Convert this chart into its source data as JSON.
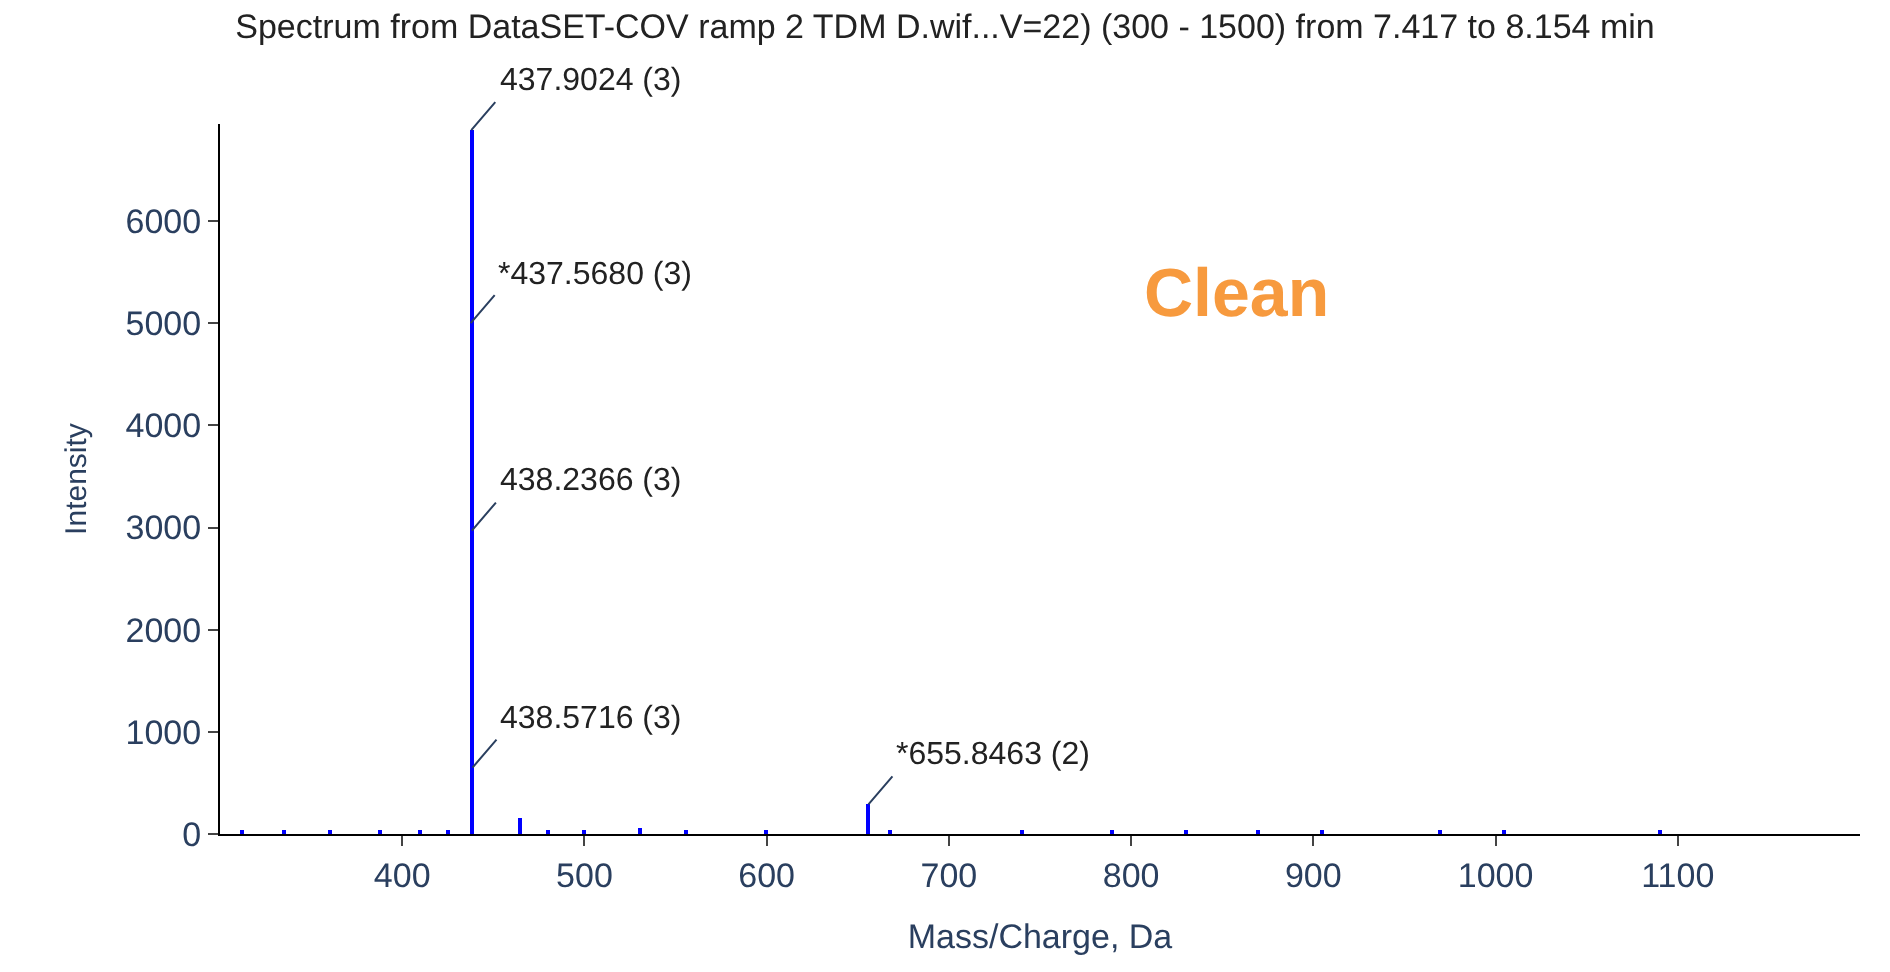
{
  "chart_data": {
    "type": "bar",
    "title": "Spectrum from DataSET-COV ramp 2 TDM D.wif...V=22) (300 - 1500) from 7.417 to 8.154 min",
    "xlabel": "Mass/Charge, Da",
    "ylabel": "Intensity",
    "x": [
      312,
      335,
      360,
      388,
      410,
      425,
      437.9024,
      465,
      480,
      500,
      530,
      556,
      600,
      655.8463,
      668,
      740,
      790,
      830,
      870,
      905,
      970,
      1005,
      1090
    ],
    "series": [
      {
        "color": "#0000ff",
        "values": [
          30,
          30,
          30,
          40,
          40,
          40,
          6890,
          150,
          40,
          40,
          50,
          40,
          30,
          290,
          40,
          40,
          40,
          40,
          40,
          30,
          30,
          30,
          30
        ]
      }
    ],
    "xlim": [
      300,
      1200
    ],
    "xticks": [
      400,
      500,
      600,
      700,
      800,
      900,
      1000,
      1100
    ],
    "ylim": [
      0,
      6950
    ],
    "yticks": [
      0,
      1000,
      2000,
      3000,
      4000,
      5000,
      6000
    ],
    "annotations": [
      {
        "text": "437.9024 (3)",
        "x": 437.9024,
        "y": 6890
      },
      {
        "text": "*437.5680 (3)",
        "x": 437.568,
        "y": 5000
      },
      {
        "text": "438.2366 (3)",
        "x": 438.2366,
        "y": 2970
      },
      {
        "text": "438.5716 (3)",
        "x": 438.5716,
        "y": 650
      },
      {
        "text": "*655.8463 (2)",
        "x": 655.8463,
        "y": 290
      },
      "Clean"
    ]
  }
}
